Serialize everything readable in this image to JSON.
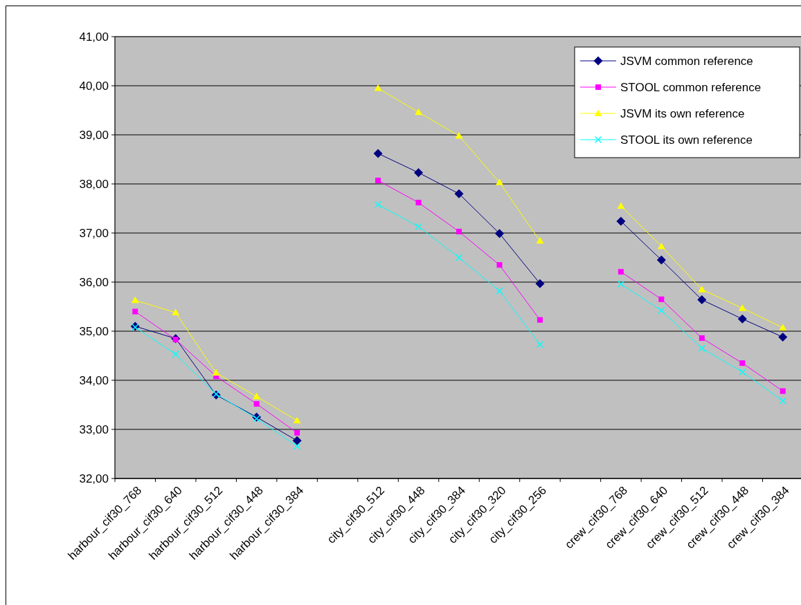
{
  "chart_data": {
    "type": "line",
    "categories": [
      "harbour_cif30_768",
      "harbour_cif30_640",
      "harbour_cif30_512",
      "harbour_cif30_448",
      "harbour_cif30_384",
      null,
      "city_cif30_512",
      "city_cif30_448",
      "city_cif30_384",
      "city_cif30_320",
      "city_cif30_256",
      null,
      "crew_cif30_768",
      "crew_cif30_640",
      "crew_cif30_512",
      "crew_cif30_448",
      "crew_cif30_384"
    ],
    "series": [
      {
        "name": "JSVM common reference",
        "color": "#000080",
        "marker": "diamond",
        "values": [
          35.1,
          34.85,
          33.7,
          33.25,
          32.77,
          null,
          38.62,
          38.23,
          37.8,
          36.99,
          35.97,
          null,
          37.24,
          36.45,
          35.64,
          35.25,
          34.88
        ]
      },
      {
        "name": "STOOL common reference",
        "color": "#ff00ff",
        "marker": "square",
        "values": [
          35.4,
          34.83,
          34.08,
          33.52,
          32.93,
          null,
          38.07,
          37.62,
          37.03,
          36.35,
          35.23,
          null,
          36.21,
          35.65,
          34.86,
          34.35,
          33.78
        ]
      },
      {
        "name": "JSVM its own reference",
        "color": "#ffff00",
        "marker": "triangle",
        "values": [
          35.63,
          35.38,
          34.15,
          33.67,
          33.18,
          null,
          39.95,
          39.46,
          38.98,
          38.03,
          36.84,
          null,
          37.55,
          36.73,
          35.85,
          35.47,
          35.07
        ]
      },
      {
        "name": "STOOL its own reference",
        "color": "#00ffff",
        "marker": "cross",
        "values": [
          35.08,
          34.53,
          33.72,
          33.22,
          32.66,
          null,
          37.58,
          37.13,
          36.5,
          35.82,
          34.73,
          null,
          35.96,
          35.42,
          34.65,
          34.17,
          33.58
        ]
      }
    ],
    "ylim": [
      32,
      41
    ],
    "yticks": [
      {
        "value": 32,
        "label": "32,00"
      },
      {
        "value": 33,
        "label": "33,00"
      },
      {
        "value": 34,
        "label": "34,00"
      },
      {
        "value": 35,
        "label": "35,00"
      },
      {
        "value": 36,
        "label": "36,00"
      },
      {
        "value": 37,
        "label": "37,00"
      },
      {
        "value": 38,
        "label": "38,00"
      },
      {
        "value": 39,
        "label": "39,00"
      },
      {
        "value": 40,
        "label": "40,00"
      },
      {
        "value": 41,
        "label": "41,00"
      }
    ],
    "grid": "y",
    "legend": "top right",
    "line_style": "solid"
  }
}
